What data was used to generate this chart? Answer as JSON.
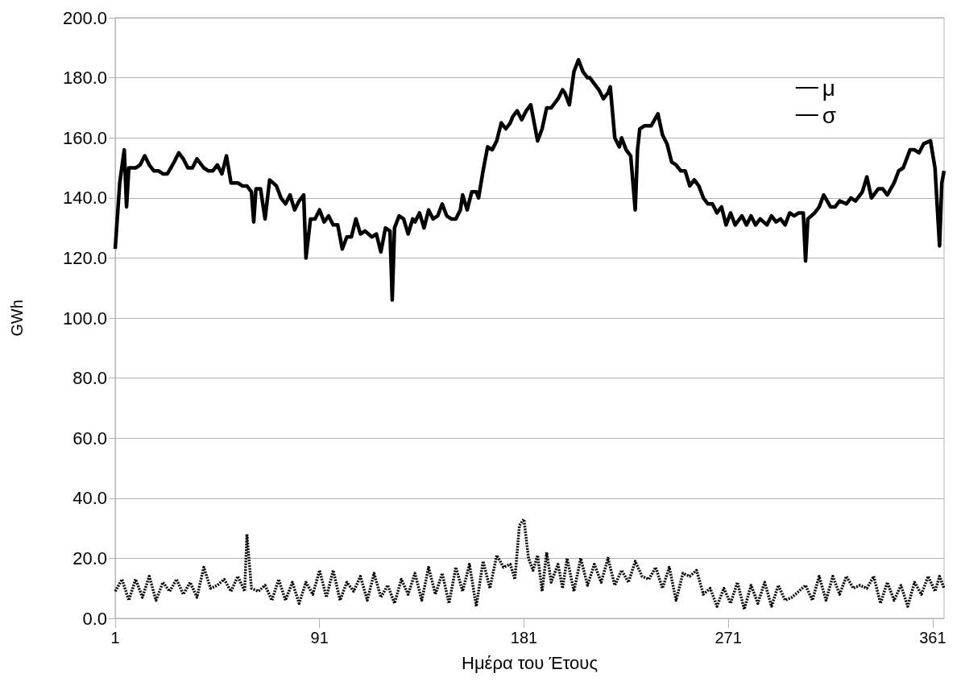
{
  "chart_data": {
    "type": "line",
    "xlabel": "Ημέρα του Έτους",
    "ylabel": "GWh",
    "xlim": [
      1,
      366
    ],
    "xticks": [
      1,
      91,
      181,
      271,
      361
    ],
    "ylim": [
      0,
      200
    ],
    "yticks": [
      {
        "value": 0,
        "label": "0.0"
      },
      {
        "value": 20,
        "label": "20.0"
      },
      {
        "value": 40,
        "label": "40.0"
      },
      {
        "value": 60,
        "label": "60.0"
      },
      {
        "value": 80,
        "label": "80.0"
      },
      {
        "value": 100,
        "label": "100.0"
      },
      {
        "value": 120,
        "label": "120.0"
      },
      {
        "value": 140,
        "label": "140.0"
      },
      {
        "value": 160,
        "label": "160.0"
      },
      {
        "value": 180,
        "label": "180.0"
      },
      {
        "value": 200,
        "label": "200.0"
      }
    ],
    "grid": "y",
    "legend": "top right",
    "marker": "none",
    "series": [
      {
        "name": "μ",
        "color": "#000000",
        "line_style": "solid",
        "x": [
          1,
          3,
          5,
          6,
          7,
          10,
          12,
          14,
          16,
          18,
          20,
          22,
          24,
          27,
          29,
          31,
          33,
          35,
          37,
          40,
          42,
          44,
          46,
          48,
          50,
          52,
          55,
          57,
          59,
          61,
          62,
          63,
          65,
          67,
          69,
          72,
          74,
          76,
          78,
          80,
          82,
          84,
          85,
          87,
          89,
          91,
          93,
          95,
          97,
          99,
          101,
          103,
          105,
          107,
          109,
          111,
          114,
          116,
          118,
          120,
          122,
          123,
          124,
          126,
          128,
          130,
          132,
          133,
          135,
          137,
          139,
          141,
          143,
          145,
          147,
          149,
          151,
          153,
          154,
          156,
          158,
          160,
          161,
          163,
          165,
          167,
          169,
          171,
          173,
          175,
          176,
          178,
          180,
          182,
          184,
          187,
          189,
          191,
          193,
          195,
          196,
          198,
          199,
          201,
          203,
          205,
          207,
          209,
          210,
          212,
          214,
          216,
          218,
          219,
          221,
          223,
          224,
          226,
          228,
          230,
          231,
          232,
          234,
          237,
          240,
          242,
          244,
          246,
          248,
          250,
          252,
          254,
          256,
          258,
          260,
          262,
          264,
          266,
          268,
          270,
          272,
          274,
          277,
          279,
          281,
          283,
          285,
          288,
          290,
          292,
          294,
          296,
          298,
          300,
          302,
          304,
          305,
          306,
          309,
          311,
          313,
          316,
          318,
          320,
          323,
          325,
          327,
          330,
          332,
          334,
          337,
          339,
          341,
          344,
          346,
          348,
          351,
          353,
          355,
          357,
          360,
          362,
          364,
          365,
          366
        ],
        "values": [
          123,
          145,
          156,
          137,
          150,
          150,
          151,
          154,
          151,
          149,
          149,
          148,
          148,
          152,
          155,
          153,
          150,
          150,
          153,
          150,
          149,
          149,
          151,
          148,
          154,
          145,
          145,
          144,
          144,
          142,
          132,
          143,
          143,
          133,
          146,
          144,
          140,
          138,
          141,
          136,
          139,
          141,
          120,
          133,
          133,
          136,
          132,
          134,
          131,
          131,
          123,
          127,
          127,
          133,
          128,
          129,
          127,
          128,
          122,
          130,
          129,
          106,
          130,
          134,
          133,
          128,
          133,
          132,
          135,
          130,
          136,
          133,
          134,
          138,
          134,
          133,
          133,
          136,
          141,
          136,
          142,
          142,
          140,
          149,
          157,
          156,
          159,
          165,
          163,
          165,
          167,
          169,
          166,
          169,
          171,
          159,
          163,
          170,
          170,
          172,
          173,
          176,
          175,
          171,
          182,
          186,
          182,
          180,
          180,
          178,
          176,
          173,
          175,
          177,
          160,
          157,
          160,
          156,
          154,
          136,
          156,
          163,
          164,
          164,
          168,
          161,
          158,
          152,
          151,
          149,
          149,
          144,
          146,
          144,
          140,
          138,
          138,
          135,
          137,
          131,
          135,
          131,
          134,
          131,
          134,
          131,
          133,
          131,
          134,
          132,
          133,
          131,
          135,
          134,
          135,
          135,
          119,
          133,
          135,
          137,
          141,
          137,
          137,
          139,
          138,
          140,
          139,
          142,
          147,
          140,
          143,
          143,
          141,
          145,
          149,
          150,
          156,
          156,
          155,
          158,
          159,
          150,
          124,
          145,
          149
        ]
      },
      {
        "name": "σ",
        "color": "#000000",
        "line_style": "dotted",
        "x": [
          1,
          4,
          7,
          10,
          13,
          16,
          19,
          22,
          25,
          28,
          31,
          34,
          37,
          40,
          43,
          46,
          49,
          52,
          55,
          58,
          59,
          61,
          64,
          67,
          70,
          73,
          76,
          79,
          82,
          85,
          88,
          91,
          94,
          97,
          100,
          103,
          106,
          109,
          112,
          115,
          118,
          121,
          124,
          127,
          130,
          133,
          136,
          139,
          142,
          145,
          148,
          151,
          154,
          157,
          160,
          163,
          166,
          169,
          172,
          175,
          177,
          179,
          181,
          183,
          185,
          187,
          189,
          191,
          193,
          196,
          198,
          200,
          203,
          206,
          209,
          212,
          215,
          218,
          221,
          224,
          227,
          230,
          233,
          236,
          239,
          242,
          245,
          248,
          251,
          254,
          257,
          260,
          263,
          266,
          269,
          272,
          275,
          278,
          281,
          284,
          287,
          290,
          293,
          296,
          299,
          302,
          305,
          308,
          311,
          314,
          317,
          320,
          323,
          326,
          329,
          332,
          335,
          338,
          341,
          344,
          347,
          350,
          353,
          356,
          359,
          362,
          364,
          366
        ],
        "values": [
          9,
          13,
          6,
          13,
          7,
          14,
          6,
          12,
          9,
          13,
          8,
          12,
          7,
          17,
          10,
          11,
          13,
          9,
          14,
          9,
          28,
          10,
          9,
          11,
          6,
          13,
          6,
          12,
          5,
          12,
          8,
          16,
          7,
          16,
          6,
          12,
          9,
          14,
          6,
          15,
          7,
          11,
          5,
          13,
          8,
          15,
          6,
          17,
          8,
          15,
          5,
          17,
          9,
          18,
          4,
          19,
          10,
          21,
          17,
          18,
          13,
          31,
          33,
          20,
          16,
          21,
          9,
          22,
          12,
          18,
          10,
          20,
          9,
          20,
          11,
          18,
          12,
          20,
          11,
          16,
          12,
          19,
          14,
          13,
          17,
          10,
          17,
          6,
          15,
          14,
          16,
          8,
          10,
          4,
          10,
          5,
          12,
          3,
          11,
          5,
          12,
          4,
          11,
          6,
          7,
          9,
          11,
          6,
          14,
          6,
          14,
          8,
          14,
          10,
          11,
          10,
          14,
          5,
          12,
          6,
          11,
          4,
          12,
          8,
          14,
          9,
          14,
          10
        ]
      }
    ]
  }
}
